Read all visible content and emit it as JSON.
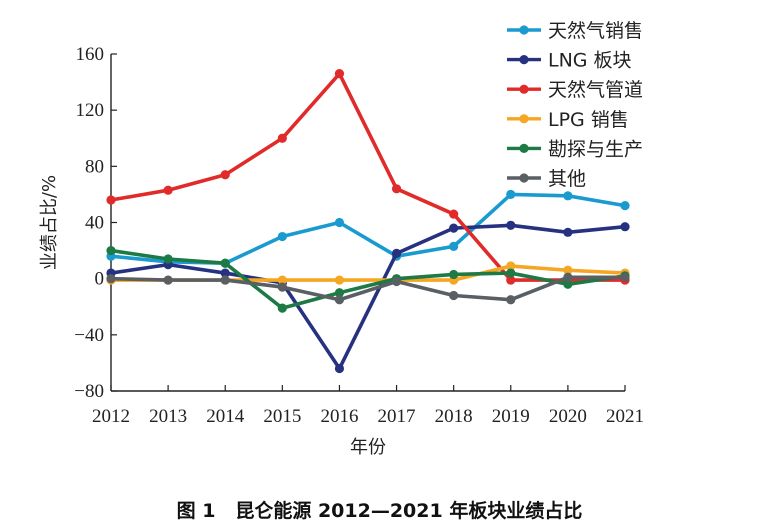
{
  "caption": "图 1   昆仑能源 2012—2021 年板块业绩占比",
  "chart_data": {
    "type": "line",
    "title": "",
    "xlabel": "年份",
    "ylabel": "业绩占比/%",
    "categories": [
      "2012",
      "2013",
      "2014",
      "2015",
      "2016",
      "2017",
      "2018",
      "2019",
      "2020",
      "2021"
    ],
    "ylim": [
      -80,
      160
    ],
    "yticks": [
      -80,
      -40,
      0,
      40,
      80,
      120,
      160
    ],
    "ytick_labels": [
      "−80",
      "−40",
      "0",
      "40",
      "80",
      "120",
      "160"
    ],
    "grid": false,
    "legend_position": "top-right",
    "series": [
      {
        "name": "天然气销售",
        "color": "#1a9bd0",
        "values": [
          16,
          12,
          11,
          30,
          40,
          16,
          23,
          60,
          59,
          52
        ]
      },
      {
        "name": "LNG 板块",
        "color": "#26327f",
        "values": [
          4,
          10,
          4,
          -3,
          -64,
          18,
          36,
          38,
          33,
          37
        ]
      },
      {
        "name": "天然气管道",
        "color": "#e12a2a",
        "values": [
          56,
          63,
          74,
          100,
          146,
          64,
          46,
          -1,
          -1,
          -1
        ]
      },
      {
        "name": "LPG 销售",
        "color": "#f5a623",
        "values": [
          -1,
          -1,
          -1,
          -1,
          -1,
          -1,
          -1,
          9,
          6,
          4
        ]
      },
      {
        "name": "勘探与生产",
        "color": "#1d7a44",
        "values": [
          20,
          14,
          11,
          -21,
          -10,
          0,
          3,
          4,
          -4,
          2
        ]
      },
      {
        "name": "其他",
        "color": "#5a5f63",
        "values": [
          0,
          -1,
          -1,
          -6,
          -15,
          -2,
          -12,
          -15,
          1,
          1
        ]
      }
    ]
  }
}
